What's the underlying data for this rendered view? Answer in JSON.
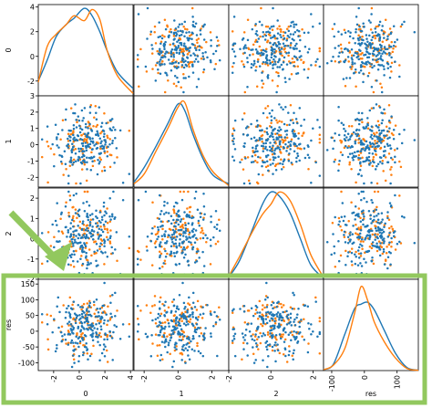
{
  "chart_data": {
    "type": "scatter",
    "variables": [
      "0",
      "1",
      "2",
      "res"
    ],
    "axis_ranges": {
      "0": [
        -3.2,
        4.2
      ],
      "1": [
        -2.6,
        3.0
      ],
      "2": [
        -2.0,
        2.5
      ],
      "res": [
        -125,
        165
      ]
    },
    "tick_labels": {
      "0": [
        "-2",
        "0",
        "2",
        "4"
      ],
      "1": [
        "-2",
        "-1",
        "0",
        "1",
        "2",
        "3"
      ],
      "2": [
        "-2",
        "-1",
        "0",
        "1",
        "2"
      ],
      "res": [
        "-100",
        "-50",
        "0",
        "50",
        "100",
        "150"
      ]
    },
    "x_tick_labels": {
      "0": [
        "-2",
        "0",
        "2",
        "4"
      ],
      "1": [
        "-2",
        "0",
        "2"
      ],
      "2": [
        "-2",
        "0",
        "2"
      ],
      "res": [
        "-100",
        "0",
        "100"
      ]
    },
    "series": [
      {
        "group": "blue",
        "color": "#1f77b4",
        "approx_points": 200
      },
      {
        "group": "orange",
        "color": "#ff7f0e",
        "approx_points": 100
      }
    ],
    "diagonal": {
      "type": "kde",
      "curves": {
        "0": {
          "x": [
            -3.2,
            -2.5,
            -1.8,
            -1.0,
            -0.4,
            0.4,
            1.0,
            1.6,
            2.2,
            3.0,
            4.2
          ],
          "blue": [
            -2.0,
            -0.3,
            1.6,
            2.6,
            3.1,
            3.9,
            3.3,
            2.0,
            0.4,
            -1.3,
            -2.6
          ],
          "orange": [
            -2.1,
            0.8,
            1.8,
            2.6,
            3.3,
            2.9,
            3.8,
            3.0,
            0.4,
            -1.6,
            -3.0
          ]
        },
        "1": {
          "x": [
            -2.6,
            -2.0,
            -1.3,
            -0.6,
            0.0,
            0.4,
            0.9,
            1.5,
            2.1,
            3.0
          ],
          "blue": [
            -2.3,
            -1.4,
            -0.1,
            1.3,
            2.5,
            2.1,
            0.6,
            -0.9,
            -1.9,
            -2.4
          ],
          "orange": [
            -2.4,
            -1.8,
            -0.4,
            1.0,
            2.3,
            2.6,
            0.9,
            -0.7,
            -1.7,
            -2.5
          ]
        },
        "2": {
          "x": [
            -2.0,
            -1.5,
            -0.9,
            -0.4,
            0.0,
            0.4,
            0.9,
            1.4,
            1.9,
            2.5
          ],
          "blue": [
            -1.9,
            -1.1,
            0.4,
            1.7,
            2.3,
            2.1,
            1.3,
            0.0,
            -1.3,
            -1.95
          ],
          "orange": [
            -1.85,
            -0.9,
            0.3,
            1.2,
            1.7,
            2.3,
            1.9,
            0.7,
            -0.8,
            -1.9
          ]
        },
        "res": {
          "x": [
            -125,
            -95,
            -60,
            -30,
            -10,
            10,
            30,
            60,
            95,
            130,
            165
          ],
          "blue": [
            -122,
            -105,
            -10,
            72,
            86,
            92,
            68,
            5,
            -70,
            -115,
            -124
          ],
          "orange": [
            -122,
            -108,
            -55,
            58,
            142,
            98,
            30,
            -32,
            -85,
            -118,
            -124
          ]
        }
      }
    },
    "annotations": [
      {
        "type": "arrow",
        "color": "#92c85e",
        "direction": "down-right"
      },
      {
        "type": "highlight-box",
        "color": "#92c85e",
        "row": "res"
      }
    ]
  }
}
